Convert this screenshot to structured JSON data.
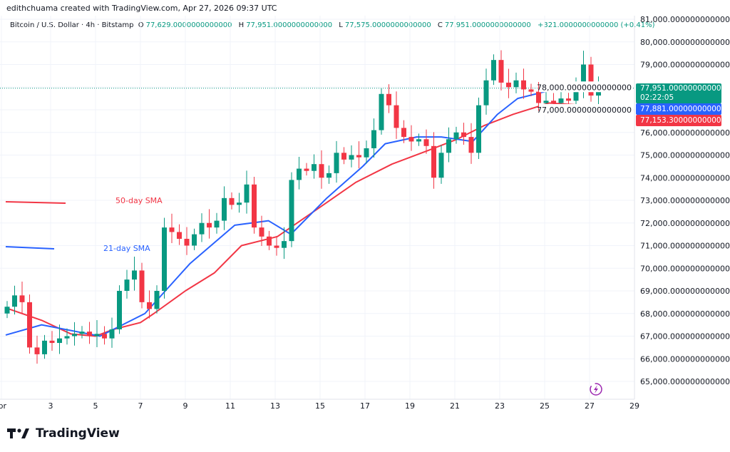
{
  "credit": "edithchuama created with TradingView.com, Apr 27, 2026 09:37 UTC",
  "legend": {
    "symbol": "Bitcoin / U.S. Dollar · 4h · Bitstamp",
    "open_label": "O",
    "open": "77,629.0000000000000",
    "high_label": "H",
    "high": "77,951.0000000000000",
    "low_label": "L",
    "low": "77,575.0000000000000",
    "close_label": "C",
    "close": "77,951.0000000000000",
    "change": "+321.0000000000000 (+0.41%)"
  },
  "tags": {
    "last_price": "77,951.0000000000000",
    "countdown": "02:22:05",
    "sma21": "77,881.0000000000000",
    "sma50": "77,153.3000000000000"
  },
  "colors": {
    "up": "#089981",
    "down": "#f23645",
    "sma21": "#2962ff",
    "sma50": "#f23645",
    "text": "#131722"
  },
  "logo": "TradingView",
  "chart_data": {
    "type": "candlestick",
    "ylim": [
      65000,
      81000
    ],
    "y_ticks": [
      65000,
      66000,
      67000,
      68000,
      69000,
      70000,
      71000,
      72000,
      73000,
      74000,
      75000,
      76000,
      77000,
      78000,
      79000,
      80000,
      81000
    ],
    "y_tick_labels": [
      "65,000.0000000000000",
      "66,000.0000000000000",
      "67,000.0000000000000",
      "68,000.0000000000000",
      "69,000.0000000000000",
      "70,000.0000000000000",
      "71,000.0000000000000",
      "72,000.0000000000000",
      "73,000.0000000000000",
      "74,000.0000000000000",
      "75,000.0000000000000",
      "76,000.0000000000000",
      "77,000.0000000000000",
      "78,000.0000000000000",
      "79,000.0000000000000",
      "80,000.0000000000000",
      "81,000.0000000000000"
    ],
    "x_tick_days": [
      1,
      3,
      5,
      7,
      9,
      11,
      13,
      15,
      17,
      19,
      21,
      23,
      25,
      27,
      29
    ],
    "x_tick_labels": [
      "Apr",
      "3",
      "5",
      "7",
      "9",
      "11",
      "13",
      "15",
      "17",
      "19",
      "21",
      "23",
      "25",
      "27",
      "29"
    ],
    "closes": [
      68300,
      68800,
      68500,
      66500,
      66200,
      66800,
      66700,
      66900,
      67000,
      67100,
      67200,
      67000,
      67100,
      66900,
      67300,
      69000,
      69500,
      69900,
      68500,
      68200,
      69000,
      71800,
      71600,
      71300,
      71000,
      71500,
      72000,
      71800,
      72100,
      73100,
      72800,
      72900,
      73700,
      71800,
      71400,
      71000,
      70900,
      71200,
      73900,
      74400,
      74300,
      74600,
      74000,
      74200,
      75100,
      74800,
      75000,
      74900,
      75300,
      76100,
      77700,
      77200,
      76200,
      75800,
      75600,
      75700,
      75400,
      74000,
      75100,
      75700,
      76000,
      75800,
      75100,
      77200,
      78300,
      79200,
      78200,
      78000,
      78300,
      77900,
      77800,
      77300,
      77400,
      77300,
      77500,
      77400,
      78000,
      79000,
      77629,
      77951
    ],
    "sma21": {
      "name": "21-day SMA",
      "days": [
        1,
        2.6,
        5.2,
        7.2,
        9.2,
        11.2,
        12.7,
        13.7,
        15.3,
        16.9,
        17.9,
        19.3,
        20.4,
        21.8,
        22.9,
        23.8,
        25.4,
        26.3,
        27.4
      ],
      "values": [
        67050,
        67500,
        67000,
        68000,
        70200,
        71900,
        72100,
        71500,
        73100,
        74500,
        75500,
        75800,
        75800,
        75600,
        76800,
        77500,
        77900,
        78000,
        77881
      ]
    },
    "sma50": {
      "name": "50-day SMA",
      "days": [
        1,
        2.6,
        3.9,
        5,
        5.8,
        7,
        7.6,
        9,
        10.3,
        11.5,
        13.1,
        15,
        16.6,
        18.2,
        19.8,
        21.1,
        22.3,
        23.6,
        25.2,
        27.4
      ],
      "values": [
        68250,
        67700,
        67100,
        67000,
        67300,
        67600,
        68000,
        69000,
        69800,
        71000,
        71400,
        72700,
        73800,
        74600,
        75200,
        75700,
        76300,
        76800,
        77300,
        77153
      ]
    }
  }
}
